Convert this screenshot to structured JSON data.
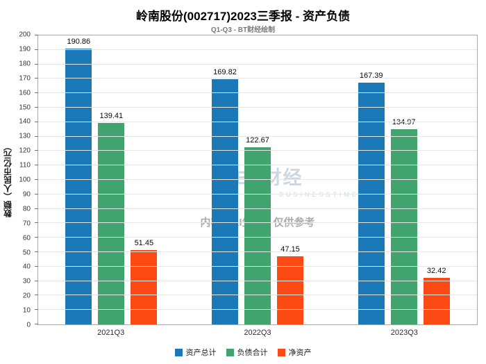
{
  "header": {
    "title": "岭南股份(002717)2023三季报 - 资产负债",
    "subtitle": "Q1-Q3 - BT财经绘制"
  },
  "watermark": {
    "brand": "BT财经",
    "brand_sub": "BUSINESSTIMES",
    "disclaimer": "内容由AI生成，仅供参考"
  },
  "chart_data": {
    "type": "bar",
    "title": "岭南股份(002717)2023三季报 - 资产负债",
    "subtitle": "Q1-Q3 - BT财经绘制",
    "xlabel": "",
    "ylabel": "数额（人民币亿元）",
    "ylim": [
      0,
      200
    ],
    "ytick_step": 10,
    "grid": true,
    "legend_position": "bottom",
    "categories": [
      "2021Q3",
      "2022Q3",
      "2023Q3"
    ],
    "series": [
      {
        "name": "资产总计",
        "color": "#1b79b7",
        "values": [
          190.86,
          169.82,
          167.39
        ]
      },
      {
        "name": "负债合计",
        "color": "#41a46f",
        "values": [
          139.41,
          122.67,
          134.97
        ]
      },
      {
        "name": "净资产",
        "color": "#fb4a14",
        "values": [
          51.45,
          47.15,
          32.42
        ]
      }
    ]
  }
}
